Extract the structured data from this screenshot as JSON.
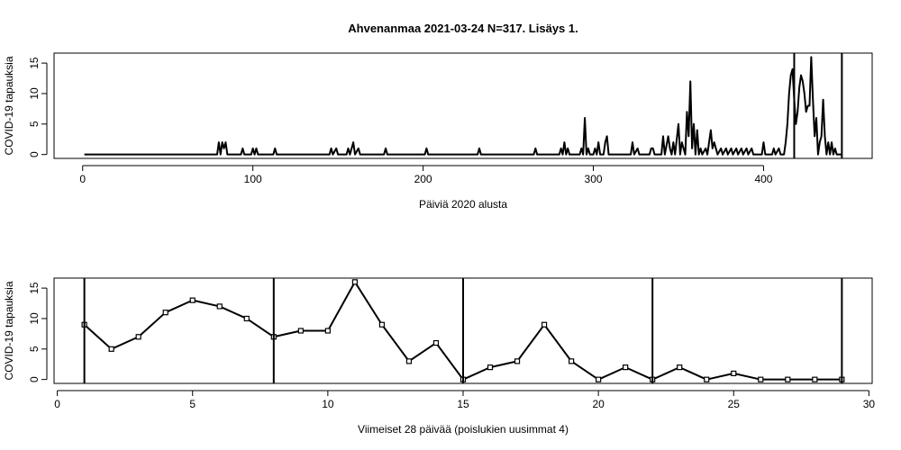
{
  "chart_data": [
    {
      "type": "line",
      "title": "Ahvenanmaa 2021-03-24 N=317. Lisäys 1.",
      "xlabel": "Päiviä 2020 alusta",
      "ylabel": "COVID-19 tapauksia",
      "x": [
        1,
        79,
        80,
        81,
        82,
        83,
        84,
        85,
        93,
        94,
        95,
        99,
        100,
        101,
        102,
        103,
        112,
        113,
        114,
        145,
        146,
        147,
        149,
        150,
        155,
        156,
        157,
        159,
        160,
        162,
        163,
        177,
        178,
        179,
        201,
        202,
        203,
        232,
        233,
        234,
        265,
        266,
        267,
        280,
        281,
        282,
        283,
        284,
        285,
        286,
        292,
        293,
        294,
        295,
        296,
        297,
        298,
        300,
        301,
        302,
        303,
        304,
        306,
        307,
        308,
        309,
        322,
        323,
        324,
        326,
        327,
        333,
        334,
        335,
        336,
        340,
        341,
        342,
        344,
        345,
        346,
        347,
        348,
        350,
        351,
        352,
        353,
        354,
        355,
        356,
        357,
        358,
        359,
        360,
        361,
        362,
        363,
        364,
        366,
        367,
        369,
        370,
        371,
        372,
        373,
        375,
        376,
        378,
        379,
        381,
        382,
        384,
        385,
        387,
        388,
        390,
        391,
        393,
        394,
        399,
        400,
        401,
        405,
        406,
        407,
        409,
        410,
        412,
        413,
        414,
        415,
        416,
        417,
        418,
        419,
        420,
        421,
        422,
        423,
        424,
        425,
        426,
        427,
        428,
        429,
        430,
        431,
        432,
        433,
        434,
        435,
        436,
        437,
        438,
        439,
        440,
        441,
        442,
        443,
        444,
        445,
        446
      ],
      "values": [
        0,
        0,
        2,
        0,
        2,
        1,
        2,
        0,
        0,
        1,
        0,
        0,
        1,
        0,
        1,
        0,
        0,
        1,
        0,
        0,
        1,
        0,
        1,
        0,
        0,
        1,
        0,
        2,
        0,
        1,
        0,
        0,
        1,
        0,
        0,
        1,
        0,
        0,
        1,
        0,
        0,
        1,
        0,
        0,
        1,
        0,
        2,
        0,
        1,
        0,
        0,
        1,
        0,
        6,
        0,
        1,
        0,
        0,
        1,
        0,
        2,
        0,
        0,
        2,
        3,
        0,
        0,
        2,
        0,
        1,
        0,
        0,
        1,
        1,
        0,
        0,
        3,
        0,
        3,
        1,
        0,
        2,
        0,
        5,
        0,
        2,
        1,
        0,
        7,
        3,
        12,
        1,
        5,
        0,
        4,
        0,
        1,
        0,
        1,
        0,
        4,
        1,
        2,
        1,
        0,
        1,
        0,
        1,
        0,
        1,
        0,
        1,
        0,
        1,
        0,
        1,
        0,
        1,
        0,
        0,
        2,
        0,
        0,
        1,
        0,
        1,
        0,
        0,
        2,
        5,
        10,
        13,
        14,
        9,
        5,
        7,
        11,
        13,
        12,
        10,
        7,
        8,
        8,
        16,
        9,
        3,
        6,
        0,
        2,
        3,
        9,
        3,
        0,
        2,
        0,
        2,
        0,
        1,
        0,
        0,
        0,
        0
      ],
      "color": "#000000",
      "xlim": [
        -16.8,
        463.8
      ],
      "xticks": [
        0,
        100,
        200,
        300,
        400
      ],
      "ylim": [
        -0.64,
        16.64
      ],
      "yticks": [
        0,
        5,
        10,
        15
      ],
      "vlines": [
        418,
        446
      ]
    },
    {
      "type": "line-points",
      "xlabel": "Viimeiset 28 päivää (poislukien uusimmat 4)",
      "ylabel": "COVID-19 tapauksia",
      "x": [
        1,
        2,
        3,
        4,
        5,
        6,
        7,
        8,
        9,
        10,
        11,
        12,
        13,
        14,
        15,
        16,
        17,
        18,
        19,
        20,
        21,
        22,
        23,
        24,
        25,
        26,
        27,
        28,
        29
      ],
      "values": [
        9,
        5,
        7,
        11,
        13,
        12,
        10,
        7,
        8,
        8,
        16,
        9,
        3,
        6,
        0,
        2,
        3,
        9,
        3,
        0,
        2,
        0,
        2,
        0,
        1,
        0,
        0,
        0,
        0
      ],
      "color": "#000000",
      "xlim": [
        -0.12,
        30.12
      ],
      "xticks": [
        0,
        5,
        10,
        15,
        20,
        25,
        30
      ],
      "ylim": [
        -0.64,
        16.64
      ],
      "yticks": [
        0,
        5,
        10,
        15
      ],
      "vlines": [
        1,
        8,
        15,
        22,
        29
      ]
    }
  ]
}
